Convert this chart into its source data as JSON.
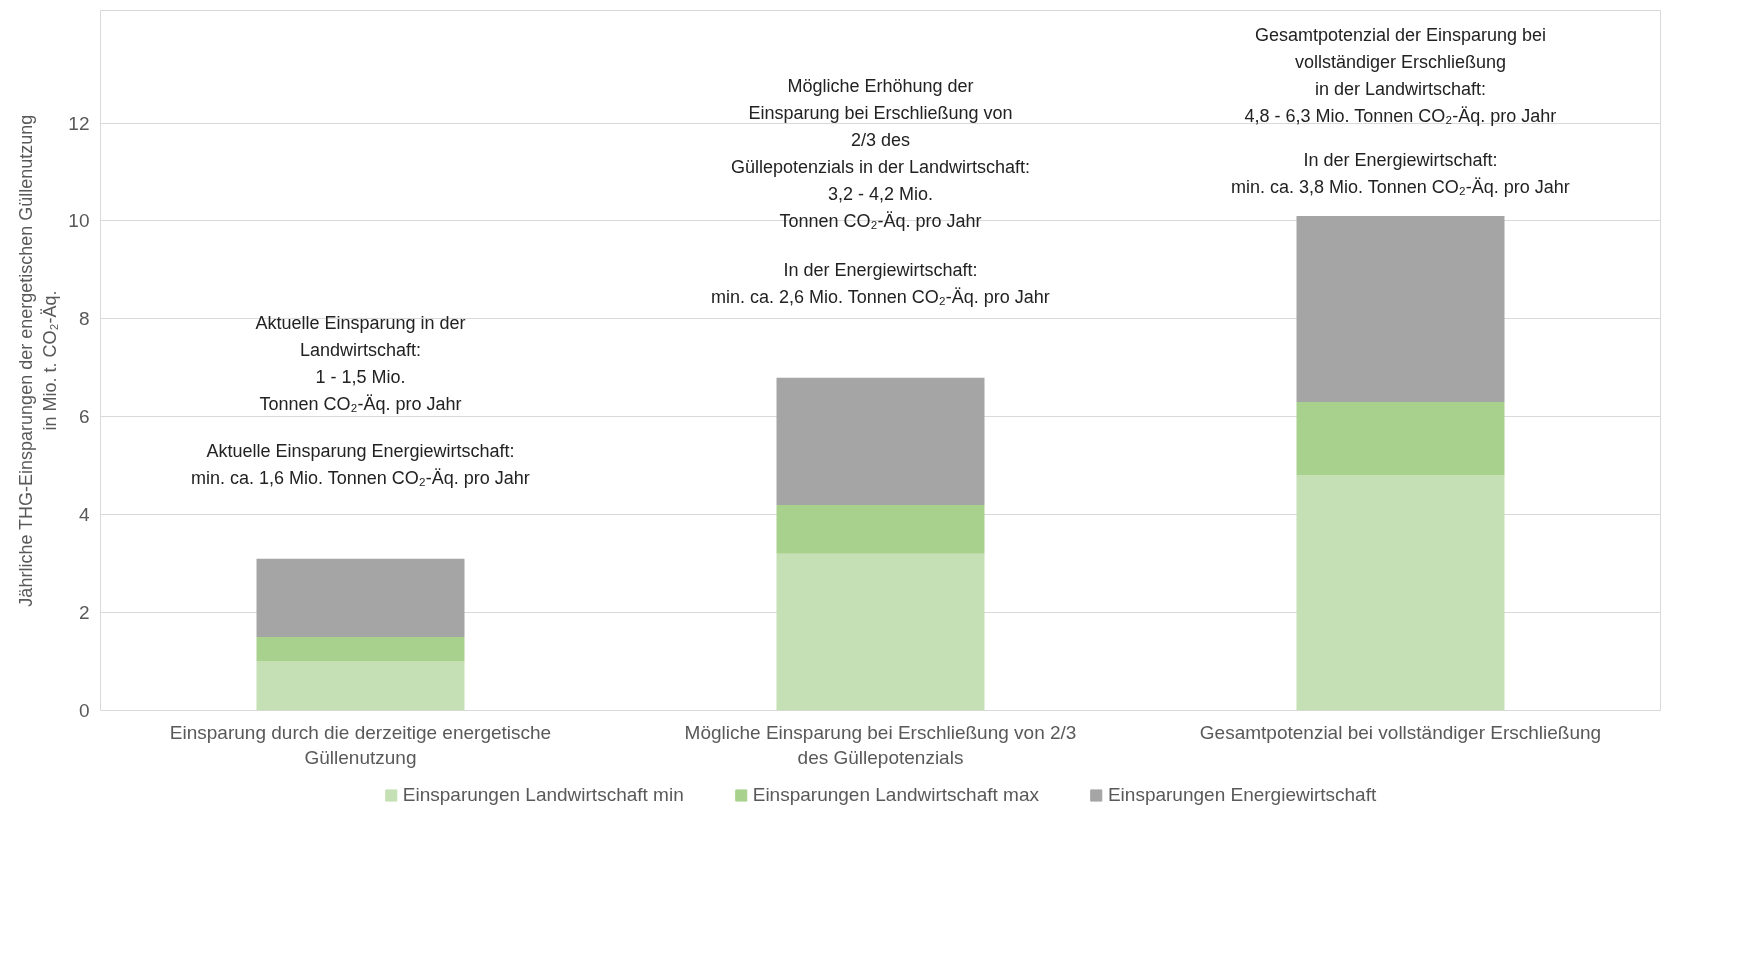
{
  "chart_data": {
    "type": "bar",
    "stacked": true,
    "ylabel": "Jährliche THG-Einsparungen der energetischen Güllenutzung\nin Mio. t. CO₂-Äq.",
    "categories": [
      "Einsparung durch die derzeitige energetische Güllenutzung",
      "Mögliche Einsparung bei Erschließung von 2/3 des Güllepotenzials",
      "Gesamtpotenzial bei vollständiger Erschließung"
    ],
    "series": [
      {
        "name": "Einsparungen Landwirtschaft min",
        "color": "#c5e0b4",
        "values": [
          1,
          3.2,
          4.8
        ]
      },
      {
        "name": "Einsparungen Landwirtschaft max",
        "color": "#a9d18e",
        "values": [
          0.5,
          1.0,
          1.5
        ]
      },
      {
        "name": "Einsparungen Energiewirtschaft",
        "color": "#a5a5a5",
        "values": [
          1.6,
          2.6,
          3.8
        ]
      }
    ],
    "ylim": [
      0,
      14.3
    ],
    "yticks": [
      0,
      2,
      4,
      6,
      8,
      10,
      12
    ],
    "grid": "y",
    "legend": "bottom",
    "annotations": [
      "Aktuelle Einsparung in der\nLandwirtschaft:\n1 - 1,5 Mio.\nTonnen CO₂-Äq. pro Jahr",
      "Aktuelle Einsparung Energiewirtschaft:\nmin. ca. 1,6 Mio. Tonnen CO₂-Äq. pro Jahr",
      "Mögliche Erhöhung der\nEinsparung bei Erschließung von\n2/3 des\nGüllepotenzials in der Landwirtschaft:\n3,2 - 4,2 Mio.\nTonnen CO₂-Äq. pro Jahr",
      "In der Energiewirtschaft:\nmin. ca. 2,6 Mio. Tonnen CO₂-Äq. pro Jahr",
      "Gesamtpotenzial der Einsparung bei\nvollständiger Erschließung\nin der Landwirtschaft:\n4,8 - 6,3 Mio. Tonnen CO₂-Äq. pro Jahr",
      "In der Energiewirtschaft:\nmin. ca. 3,8 Mio. Tonnen CO₂-Äq. pro Jahr"
    ]
  }
}
